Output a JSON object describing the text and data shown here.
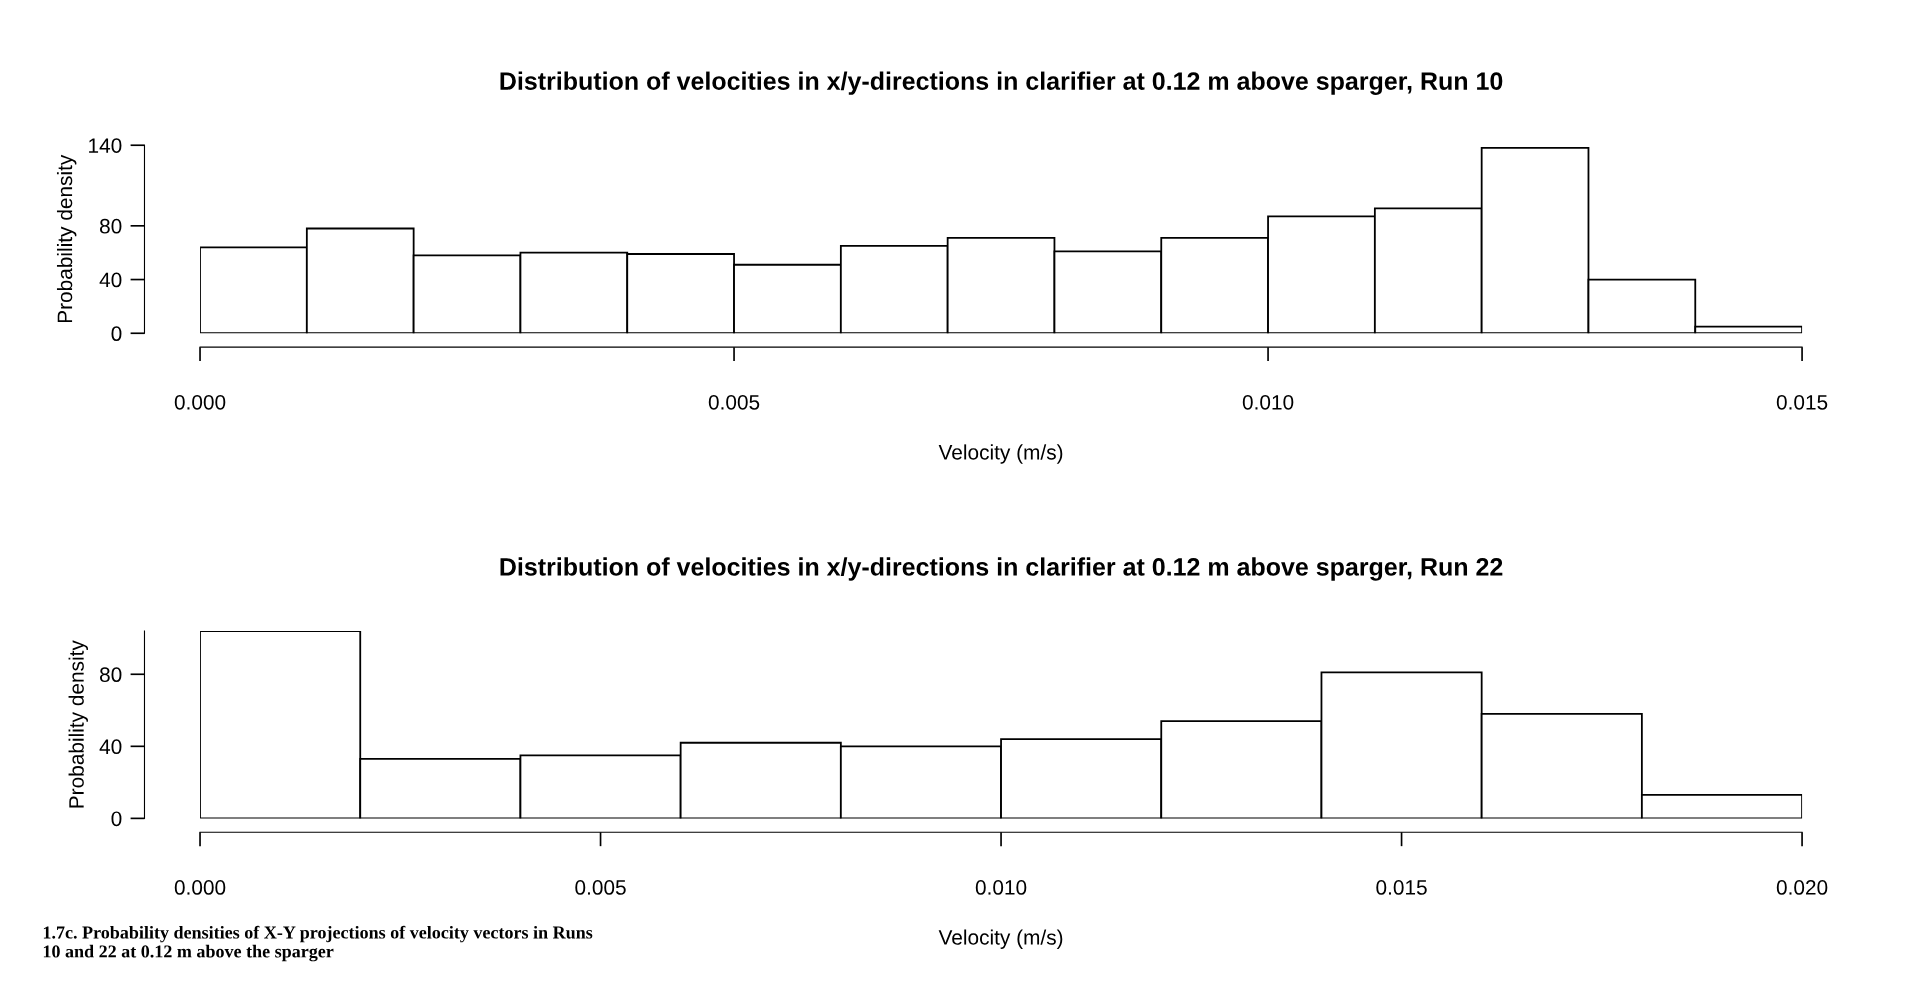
{
  "chart_data": [
    {
      "type": "histogram",
      "title": "Distribution of velocities in x/y-directions in clarifier at 0.12 m above sparger, Run 10",
      "xlabel": "Velocity (m/s)",
      "ylabel": "Probability density",
      "bins": [
        0,
        0.001,
        0.002,
        0.003,
        0.004,
        0.005,
        0.006,
        0.007,
        0.008,
        0.009,
        0.01,
        0.011,
        0.012,
        0.013,
        0.014,
        0.015
      ],
      "values": [
        64,
        78,
        58,
        60,
        59,
        51,
        65,
        71,
        61,
        71,
        87,
        93,
        138,
        40,
        5
      ],
      "color": "#ffffff",
      "xlim": [
        0,
        0.015
      ],
      "xticks": [
        {
          "value": 0,
          "label": "0.000"
        },
        {
          "value": 0.005,
          "label": "0.005"
        },
        {
          "value": 0.01,
          "label": "0.010"
        },
        {
          "value": 0.015,
          "label": "0.015"
        }
      ],
      "ylim": [
        0,
        140
      ],
      "yticks": [
        0,
        40,
        80,
        140
      ],
      "grid": false,
      "legend": false
    },
    {
      "type": "histogram",
      "title": "Distribution of velocities in x/y-directions in clarifier at 0.12 m above sparger, Run 22",
      "xlabel": "Velocity (m/s)",
      "ylabel": "Probability density",
      "bins": [
        0,
        0.002,
        0.004,
        0.006,
        0.008,
        0.01,
        0.012,
        0.014,
        0.016,
        0.018,
        0.02
      ],
      "values": [
        104,
        33,
        35,
        42,
        40,
        44,
        54,
        81,
        58,
        13
      ],
      "color": "#ffffff",
      "xlim": [
        0,
        0.02
      ],
      "xticks": [
        {
          "value": 0,
          "label": "0.000"
        },
        {
          "value": 0.005,
          "label": "0.005"
        },
        {
          "value": 0.01,
          "label": "0.010"
        },
        {
          "value": 0.015,
          "label": "0.015"
        },
        {
          "value": 0.02,
          "label": "0.020"
        }
      ],
      "ylim": [
        0,
        104
      ],
      "yticks": [
        0,
        40,
        80
      ],
      "annotations": [
        "1.7c. Probability densities of X-Y projections of velocity vectors in Runs\n10 and 22 at 0.12 m above the sparger"
      ],
      "grid": false,
      "legend": false
    }
  ]
}
